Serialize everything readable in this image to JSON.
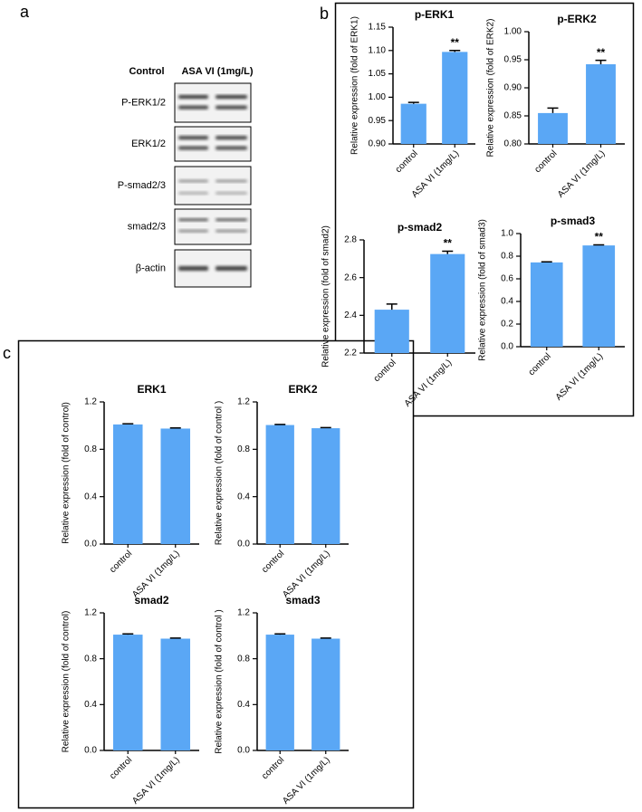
{
  "panel_labels": [
    "a",
    "b",
    "c"
  ],
  "blot": {
    "columns": [
      "Control",
      "ASA VI (1mg/L)"
    ],
    "rows": [
      "P-ERK1/2",
      "ERK1/2",
      "P-smad2/3",
      "smad2/3",
      "β-actin"
    ]
  },
  "chart_data": [
    {
      "type": "bar",
      "title": "p-ERK1",
      "y_label": "Relative expression (fold of ERK1)",
      "categories": [
        "control",
        "ASA VI (1mg/L)"
      ],
      "values": [
        0.986,
        1.097
      ],
      "errors": [
        0.003,
        0.003
      ],
      "bar_labels": [
        null,
        "**"
      ],
      "color": "#5aa7f5",
      "ylim": [
        0.9,
        1.15
      ],
      "yticks": [
        {
          "value": 0.9,
          "label": "0.90"
        },
        0.95,
        {
          "value": 1.0,
          "label": "1.00"
        },
        1.05,
        {
          "value": 1.1,
          "label": "1.10"
        },
        1.15
      ]
    },
    {
      "type": "bar",
      "title": "p-ERK2",
      "y_label": "Relative expression (fold of ERK2)",
      "categories": [
        "control",
        "ASA VI (1mg/L)"
      ],
      "values": [
        0.855,
        0.942
      ],
      "errors": [
        0.009,
        0.007
      ],
      "bar_labels": [
        null,
        "**"
      ],
      "color": "#5aa7f5",
      "ylim": [
        0.8,
        1.0
      ],
      "yticks": [
        {
          "value": 0.8,
          "label": "0.80"
        },
        0.85,
        {
          "value": 0.9,
          "label": "0.90"
        },
        0.95,
        {
          "value": 1.0,
          "label": "1.00"
        }
      ]
    },
    {
      "type": "bar",
      "title": "p-smad2",
      "y_label": "Relative expression (fold of smad2)",
      "categories": [
        "control",
        "ASA VI (1mg/L)"
      ],
      "values": [
        2.43,
        2.725
      ],
      "errors": [
        0.03,
        0.015
      ],
      "bar_labels": [
        null,
        "**"
      ],
      "color": "#5aa7f5",
      "ylim": [
        2.2,
        2.8
      ],
      "yticks": [
        2.2,
        2.4,
        2.6,
        2.8
      ]
    },
    {
      "type": "bar",
      "title": "p-smad3",
      "y_label": "Relative expression (fold of smad3)",
      "categories": [
        "control",
        "ASA VI (1mg/L)"
      ],
      "values": [
        0.745,
        0.895
      ],
      "errors": [
        0.005,
        0.005
      ],
      "bar_labels": [
        null,
        "**"
      ],
      "color": "#5aa7f5",
      "ylim": [
        0,
        1.0
      ],
      "yticks": [
        {
          "value": 0,
          "label": "0.0"
        },
        0.2,
        0.4,
        0.6,
        0.8,
        {
          "value": 1.0,
          "label": "1.0"
        }
      ]
    },
    {
      "type": "bar",
      "title": "ERK1",
      "y_label": "Relative expression (fold of control)",
      "categories": [
        "control",
        "ASA VI (1mg/L)"
      ],
      "values": [
        1.01,
        0.975
      ],
      "errors": [
        0.006,
        0.005
      ],
      "color": "#5aa7f5",
      "ylim": [
        0,
        1.2
      ],
      "yticks": [
        {
          "value": 0,
          "label": "0.0"
        },
        0.4,
        0.8,
        1.2
      ]
    },
    {
      "type": "bar",
      "title": "ERK2",
      "y_label": "Relative expression (fold of control )",
      "categories": [
        "control",
        "ASA VI (1mg/L)"
      ],
      "values": [
        1.005,
        0.978
      ],
      "errors": [
        0.005,
        0.005
      ],
      "color": "#5aa7f5",
      "ylim": [
        0,
        1.2
      ],
      "yticks": [
        {
          "value": 0,
          "label": "0.0"
        },
        0.4,
        0.8,
        1.2
      ]
    },
    {
      "type": "bar",
      "title": "smad2",
      "y_label": "Relative expression (fold of control)",
      "categories": [
        "control",
        "ASA VI (1mg/L)"
      ],
      "values": [
        1.01,
        0.975
      ],
      "errors": [
        0.006,
        0.005
      ],
      "color": "#5aa7f5",
      "ylim": [
        0,
        1.2
      ],
      "yticks": [
        {
          "value": 0,
          "label": "0.0"
        },
        0.4,
        0.8,
        1.2
      ]
    },
    {
      "type": "bar",
      "title": "smad3",
      "y_label": "Relative expression (fold of control )",
      "categories": [
        "control",
        "ASA VI (1mg/L)"
      ],
      "values": [
        1.01,
        0.975
      ],
      "errors": [
        0.006,
        0.005
      ],
      "color": "#5aa7f5",
      "ylim": [
        0,
        1.2
      ],
      "yticks": [
        {
          "value": 0,
          "label": "0.0"
        },
        0.4,
        0.8,
        1.2
      ]
    }
  ]
}
